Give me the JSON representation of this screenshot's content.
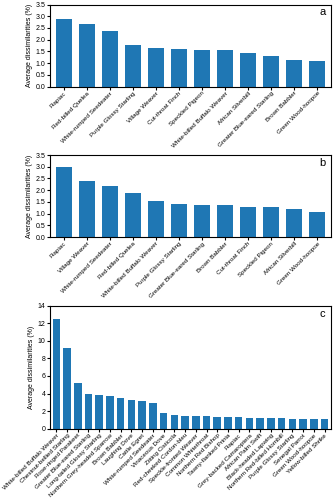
{
  "chart_data": [
    {
      "type": "bar",
      "categories": [
        "Piapiac",
        "Red-billed Quelea",
        "White-rumped Seedeater",
        "Purple Glossy Starling",
        "Village Weaver",
        "Cut-throat Finch",
        "Speckled Pigeon",
        "White-billed Buffalo Weaver",
        "African Silverbill",
        "Greater Blue-eared Starling",
        "Brown Babbler",
        "Green Wood-hoopoe"
      ],
      "values": [
        2.88,
        2.65,
        2.35,
        1.78,
        1.65,
        1.6,
        1.58,
        1.55,
        1.42,
        1.3,
        1.15,
        1.1
      ],
      "ylim": [
        0,
        3.5
      ],
      "yticks": [
        0.0,
        0.5,
        1.0,
        1.5,
        2.0,
        2.5,
        3.0,
        3.5
      ],
      "y_label": "Average dissimilarities (%)",
      "annotations": [
        {
          "text": "a"
        }
      ]
    },
    {
      "type": "bar",
      "categories": [
        "Piapiac",
        "Village Weaver",
        "White-rumped Seedeater",
        "Red-billed Quelea",
        "White-billed Buffalo Weaver",
        "Purple Glossy Starling",
        "Greater Blue-eared Starling",
        "Brown Babbler",
        "Cut-throat Finch",
        "Speckled Pigeon",
        "African Silverbill",
        "Green Wood-hoopoe"
      ],
      "values": [
        3.0,
        2.38,
        2.2,
        1.9,
        1.55,
        1.42,
        1.38,
        1.38,
        1.3,
        1.28,
        1.18,
        1.08
      ],
      "ylim": [
        0,
        3.5
      ],
      "yticks": [
        0.0,
        0.5,
        1.0,
        1.5,
        2.0,
        2.5,
        3.0,
        3.5
      ],
      "y_label": "Average dissimilarities (%)",
      "annotations": [
        {
          "text": "b"
        }
      ]
    },
    {
      "type": "bar",
      "categories": [
        "White-billed Buffalo Weaver",
        "Chestnut-bellied Starling",
        "Rose-ringed Parakeet",
        "Greater Blue-eared Starling",
        "Long-tailed Glossy Starling",
        "Northern Grey-headed Sparrow",
        "Brown Babbler",
        "Laughing Dove",
        "Cattle Egret",
        "White-rumped Seedeater",
        "Vinaceous Dove",
        "Zitting Cisticola",
        "Red-cheeked Cordon-bleu",
        "Speckle-fronted Weaver",
        "Common Whitethroat",
        "Northern Red Bishop",
        "Tawny-flanked Prinia",
        "Piapiac",
        "Grey-backed Camaroptera",
        "African Palm Swift",
        "Black-headed Lapwing",
        "Northern Red-billed Hornbill",
        "Purple Glossy Starling",
        "Senegal Parrot",
        "Green Wood-hoopoe",
        "Yellow-billed Shrike"
      ],
      "values": [
        12.5,
        9.2,
        5.2,
        4.0,
        3.8,
        3.7,
        3.5,
        3.3,
        3.2,
        2.9,
        1.75,
        1.6,
        1.5,
        1.45,
        1.4,
        1.35,
        1.3,
        1.28,
        1.25,
        1.22,
        1.2,
        1.18,
        1.15,
        1.12,
        1.1,
        1.05
      ],
      "ylim": [
        0,
        14
      ],
      "yticks": [
        0,
        2,
        4,
        6,
        8,
        10,
        12,
        14
      ],
      "y_label": "Average dissimilarities (%)",
      "annotations": [
        {
          "text": "c"
        }
      ]
    }
  ]
}
